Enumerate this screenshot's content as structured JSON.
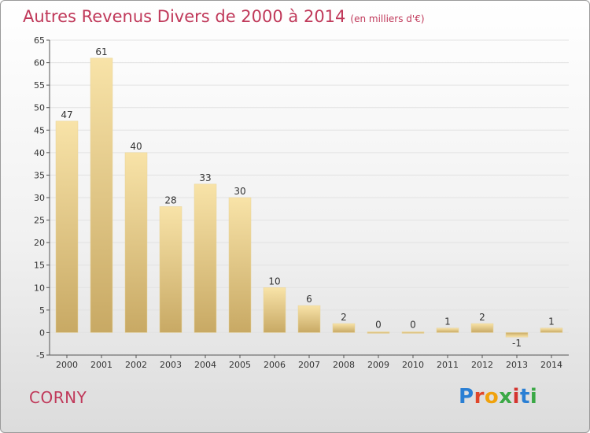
{
  "header": {
    "title": "Autres Revenus Divers de 2000 à 2014",
    "unit": "(en milliers d'€)"
  },
  "footer": {
    "city": "CORNY",
    "logo": "Proxiti"
  },
  "colors": {
    "title": "#c0395a",
    "bar_light": "#f7dfa0",
    "bar_dark": "#c9a862",
    "axis": "#555555",
    "grid": "#dddddd"
  },
  "chart_data": {
    "type": "bar",
    "title": "Autres Revenus Divers de 2000 à 2014",
    "subtitle": "(en milliers d'€)",
    "categories": [
      "2000",
      "2001",
      "2002",
      "2003",
      "2004",
      "2005",
      "2006",
      "2007",
      "2008",
      "2009",
      "2010",
      "2011",
      "2012",
      "2013",
      "2014"
    ],
    "values": [
      47,
      61,
      40,
      28,
      33,
      30,
      10,
      6,
      2,
      0,
      0,
      1,
      2,
      -1,
      1
    ],
    "data_labels": [
      "47",
      "61",
      "40",
      "28",
      "33",
      "30",
      "10",
      "6",
      "2",
      "0",
      "0",
      "1",
      "2",
      "-1",
      "1"
    ],
    "ylim": [
      -5,
      65
    ],
    "yticks": [
      -5,
      0,
      5,
      10,
      15,
      20,
      25,
      30,
      35,
      40,
      45,
      50,
      55,
      60,
      65
    ],
    "ytick_labels": [
      "-5",
      "0",
      "5",
      "10",
      "15",
      "20",
      "25",
      "30",
      "35",
      "40",
      "45",
      "50",
      "55",
      "60",
      "65"
    ],
    "grid": true,
    "legend": "none"
  }
}
